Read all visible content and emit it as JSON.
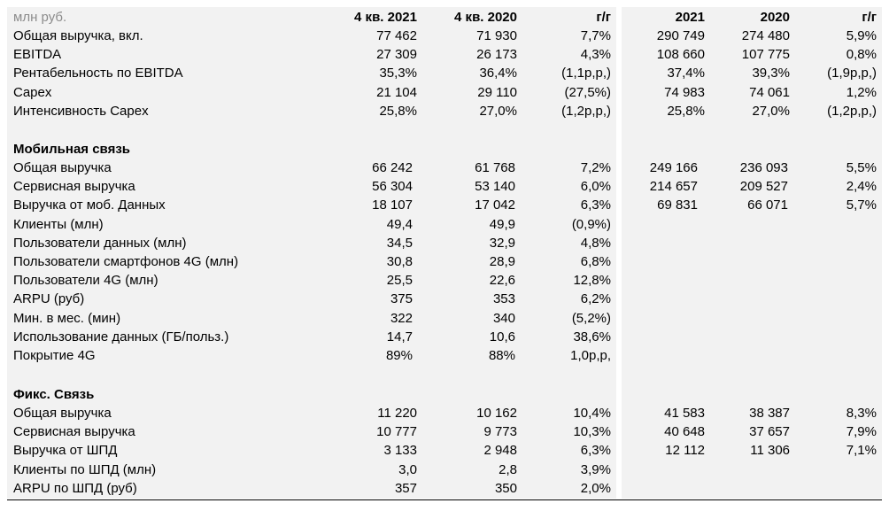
{
  "header": {
    "unit": "млн руб.",
    "cols": [
      "4 кв. 2021",
      "4 кв. 2020",
      "г/г",
      "2021",
      "2020",
      "г/г"
    ]
  },
  "group": [
    {
      "label": "Общая выручка, вкл.",
      "q21": "77 462",
      "q20": "71 930",
      "qy": "7,7%",
      "y21": "290 749",
      "y20": "274 480",
      "yy": "5,9%"
    },
    {
      "label": "EBITDA",
      "q21": "27 309",
      "q20": "26 173",
      "qy": "4,3%",
      "y21": "108 660",
      "y20": "107 775",
      "yy": "0,8%"
    },
    {
      "label": "Рентабельность по EBITDA",
      "q21": "35,3%",
      "q20": "36,4%",
      "qy": "(1,1p,p,)",
      "y21": "37,4%",
      "y20": "39,3%",
      "yy": "(1,9p,p,)"
    },
    {
      "label": "Capex",
      "q21": "21 104",
      "q20": "29 110",
      "qy": "(27,5%)",
      "y21": "74 983",
      "y20": "74 061",
      "yy": "1,2%"
    },
    {
      "label": "Интенсивность Capex",
      "q21": "25,8%",
      "q20": "27,0%",
      "qy": "(1,2p,p,)",
      "y21": "25,8%",
      "y20": "27,0%",
      "yy": "(1,2p,p,)"
    }
  ],
  "mobile": {
    "title": "Мобильная связь",
    "rows": [
      {
        "label": "Общая выручка",
        "q21": "66 242",
        "q20": "61 768",
        "qy": "7,2%",
        "y21": "249 166",
        "y20": "236 093",
        "yy": "5,5%"
      },
      {
        "label": "Сервисная выручка",
        "q21": "56 304",
        "q20": "53 140",
        "qy": "6,0%",
        "y21": "214 657",
        "y20": "209 527",
        "yy": "2,4%"
      },
      {
        "label": "Выручка от моб. Данных",
        "q21": "18 107",
        "q20": "17 042",
        "qy": "6,3%",
        "y21": "69 831",
        "y20": "66 071",
        "yy": "5,7%"
      },
      {
        "label": "Клиенты (млн)",
        "q21": "49,4",
        "q20": "49,9",
        "qy": "(0,9%)",
        "y21": "",
        "y20": "",
        "yy": ""
      },
      {
        "label": "Пользователи данных (млн)",
        "q21": "34,5",
        "q20": "32,9",
        "qy": "4,8%",
        "y21": "",
        "y20": "",
        "yy": ""
      },
      {
        "label": "Пользователи смартфонов 4G (млн)",
        "q21": "30,8",
        "q20": "28,9",
        "qy": "6,8%",
        "y21": "",
        "y20": "",
        "yy": ""
      },
      {
        "label": "Пользователи 4G (млн)",
        "q21": "25,5",
        "q20": "22,6",
        "qy": "12,8%",
        "y21": "",
        "y20": "",
        "yy": ""
      },
      {
        "label": "ARPU (руб)",
        "q21": "375",
        "q20": "353",
        "qy": "6,2%",
        "y21": "",
        "y20": "",
        "yy": ""
      },
      {
        "label": "Мин. в мес. (мин)",
        "q21": "322",
        "q20": "340",
        "qy": "(5,2%)",
        "y21": "",
        "y20": "",
        "yy": ""
      },
      {
        "label": "Использование данных (ГБ/польз.)",
        "q21": "14,7",
        "q20": "10,6",
        "qy": "38,6%",
        "y21": "",
        "y20": "",
        "yy": ""
      },
      {
        "label": "Покрытие 4G",
        "q21": "89%",
        "q20": "88%",
        "qy": "1,0p,p,",
        "y21": "",
        "y20": "",
        "yy": ""
      }
    ]
  },
  "fixed": {
    "title": "Фикс. Связь",
    "rows": [
      {
        "label": "Общая выручка",
        "q21": "11 220",
        "q20": "10 162",
        "qy": "10,4%",
        "y21": "41 583",
        "y20": "38 387",
        "yy": "8,3%"
      },
      {
        "label": "Сервисная выручка",
        "q21": "10 777",
        "q20": "9 773",
        "qy": "10,3%",
        "y21": "40 648",
        "y20": "37 657",
        "yy": "7,9%"
      },
      {
        "label": "Выручка от ШПД",
        "q21": "3 133",
        "q20": "2 948",
        "qy": "6,3%",
        "y21": "12 112",
        "y20": "11 306",
        "yy": "7,1%"
      },
      {
        "label": "Клиенты по ШПД (млн)",
        "q21": "3,0",
        "q20": "2,8",
        "qy": "3,9%",
        "y21": "",
        "y20": "",
        "yy": ""
      },
      {
        "label": "ARPU по ШПД (руб)",
        "q21": "357",
        "q20": "350",
        "qy": "2,0%",
        "y21": "",
        "y20": "",
        "yy": ""
      }
    ]
  }
}
